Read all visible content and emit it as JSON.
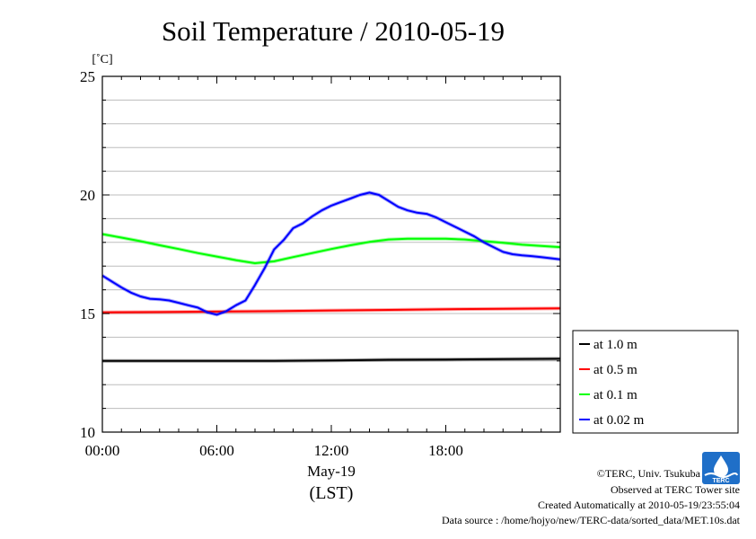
{
  "chart_data": {
    "type": "line",
    "title": "Soil Temperature / 2010-05-19",
    "ylabel": "[˚C]",
    "xlabel": "May-19",
    "xlabel2": "(LST)",
    "ylim": [
      10,
      25
    ],
    "xlim": [
      0,
      24
    ],
    "yticks": [
      10,
      15,
      20,
      25
    ],
    "ytick_labels": [
      "10",
      "15",
      "20",
      "25"
    ],
    "xticks": [
      0,
      6,
      12,
      18
    ],
    "xtick_labels": [
      "00:00",
      "06:00",
      "12:00",
      "18:00"
    ],
    "grid": "horizontal",
    "legend_position": "right",
    "series": [
      {
        "name": "at 1.0 m",
        "color": "#000000",
        "x": [
          0,
          3,
          6,
          9,
          12,
          15,
          18,
          21,
          24
        ],
        "y": [
          13.0,
          13.0,
          13.0,
          13.0,
          13.02,
          13.05,
          13.06,
          13.08,
          13.09
        ]
      },
      {
        "name": "at 0.5 m",
        "color": "#ff0000",
        "x": [
          0,
          3,
          6,
          9,
          12,
          15,
          18,
          21,
          24
        ],
        "y": [
          15.05,
          15.06,
          15.08,
          15.1,
          15.13,
          15.15,
          15.18,
          15.2,
          15.22
        ]
      },
      {
        "name": "at 0.1 m",
        "color": "#00ff00",
        "x": [
          0,
          1,
          2,
          3,
          4,
          5,
          6,
          7,
          8,
          9,
          10,
          11,
          12,
          13,
          14,
          15,
          16,
          17,
          18,
          19,
          20,
          21,
          22,
          23,
          24
        ],
        "y": [
          18.35,
          18.2,
          18.05,
          17.88,
          17.72,
          17.55,
          17.4,
          17.25,
          17.12,
          17.2,
          17.38,
          17.55,
          17.72,
          17.88,
          18.02,
          18.12,
          18.15,
          18.15,
          18.15,
          18.12,
          18.05,
          17.98,
          17.9,
          17.85,
          17.8
        ]
      },
      {
        "name": "at 0.02 m",
        "color": "#0000ff",
        "x": [
          0,
          0.5,
          1,
          1.5,
          2,
          2.5,
          3,
          3.5,
          4,
          4.5,
          5,
          5.5,
          6,
          6.5,
          7,
          7.5,
          8,
          8.5,
          9,
          9.5,
          10,
          10.5,
          11,
          11.5,
          12,
          12.5,
          13,
          13.5,
          14,
          14.5,
          15,
          15.5,
          16,
          16.5,
          17,
          17.5,
          18,
          18.5,
          19,
          19.5,
          20,
          20.5,
          21,
          21.5,
          22,
          22.5,
          23,
          23.5,
          24
        ],
        "y": [
          16.6,
          16.35,
          16.1,
          15.88,
          15.72,
          15.62,
          15.6,
          15.55,
          15.45,
          15.35,
          15.25,
          15.05,
          14.95,
          15.1,
          15.35,
          15.55,
          16.2,
          16.9,
          17.7,
          18.1,
          18.6,
          18.8,
          19.1,
          19.35,
          19.55,
          19.7,
          19.85,
          20.0,
          20.1,
          20.0,
          19.75,
          19.5,
          19.35,
          19.25,
          19.2,
          19.05,
          18.85,
          18.65,
          18.45,
          18.25,
          18.0,
          17.8,
          17.6,
          17.5,
          17.45,
          17.42,
          17.38,
          17.33,
          17.28
        ]
      }
    ]
  },
  "credits": {
    "copyright": "©TERC, Univ. Tsukuba",
    "observed": "Observed at TERC Tower site",
    "created": "Created Automatically at 2010-05-19/23:55:04",
    "source": "Data source : /home/hojyo/new/TERC-data/sorted_data/MET.10s.dat",
    "logo_text": "TERC"
  }
}
